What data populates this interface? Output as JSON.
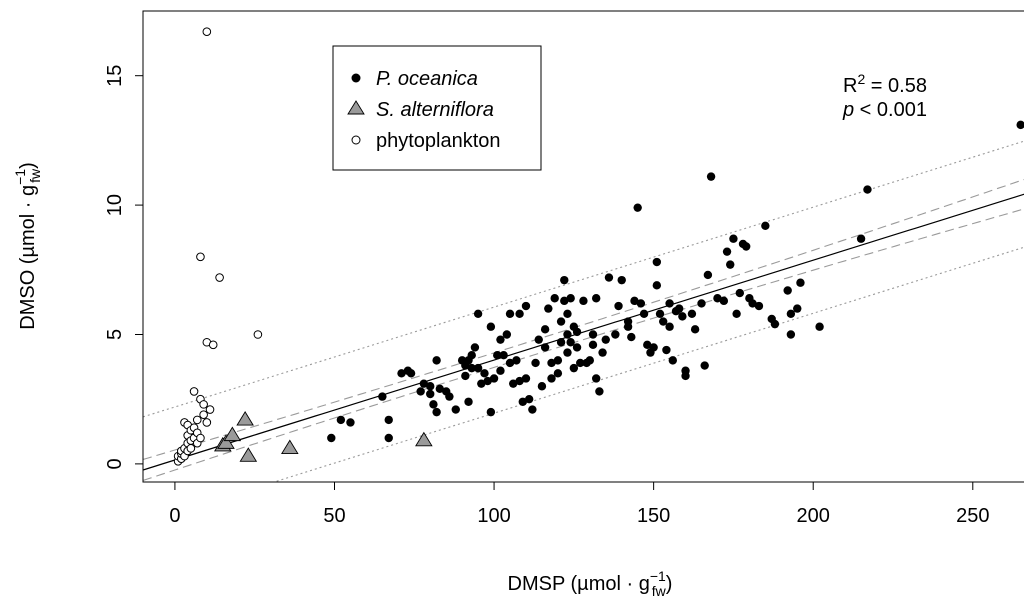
{
  "chart_data": {
    "type": "scatter",
    "xlabel": "DMSP (µmol · g",
    "xlabel_sup": "−1",
    "xlabel_sub": "fw",
    "xlabel_close": ")",
    "ylabel": "DMSO (µmol · g",
    "ylabel_sup": "−1",
    "ylabel_sub": "fw",
    "ylabel_close": ")",
    "xlim": [
      -10,
      272
    ],
    "ylim": [
      -0.7,
      17.5
    ],
    "x_ticks": [
      0,
      50,
      100,
      150,
      200,
      250
    ],
    "y_ticks": [
      0,
      5,
      10,
      15
    ],
    "legend_position": "top-left",
    "annotation": {
      "r2_prefix": "R",
      "r2_sup": "2",
      "r2_value": " = 0.58",
      "p_letter": "p",
      "p_value": " < 0.001"
    },
    "fit": {
      "slope": 0.0386,
      "intercept": 0.15
    },
    "confidence_band": {
      "half_width": 0.28,
      "curvature": 1.05e-05,
      "center_x": 100
    },
    "prediction_band": {
      "half_width": 2.05
    },
    "series": [
      {
        "name": "P. oceanica",
        "marker": "filled-circle",
        "color": "#000000",
        "points": [
          [
            49,
            1.0
          ],
          [
            52,
            1.7
          ],
          [
            55,
            1.6
          ],
          [
            65,
            2.6
          ],
          [
            67,
            1.0
          ],
          [
            67,
            1.7
          ],
          [
            71,
            3.5
          ],
          [
            73,
            3.6
          ],
          [
            74,
            3.5
          ],
          [
            77,
            2.8
          ],
          [
            78,
            3.1
          ],
          [
            80,
            2.7
          ],
          [
            80,
            3.0
          ],
          [
            81,
            2.3
          ],
          [
            82,
            2.0
          ],
          [
            82,
            4.0
          ],
          [
            83,
            2.9
          ],
          [
            85,
            2.8
          ],
          [
            86,
            2.6
          ],
          [
            88,
            2.1
          ],
          [
            90,
            4.0
          ],
          [
            91,
            3.4
          ],
          [
            91,
            3.8
          ],
          [
            92,
            2.4
          ],
          [
            92,
            4.0
          ],
          [
            93,
            4.2
          ],
          [
            93,
            3.7
          ],
          [
            94,
            4.5
          ],
          [
            95,
            3.7
          ],
          [
            95,
            5.8
          ],
          [
            96,
            3.1
          ],
          [
            97,
            3.5
          ],
          [
            98,
            3.2
          ],
          [
            99,
            5.3
          ],
          [
            99,
            2.0
          ],
          [
            100,
            3.3
          ],
          [
            101,
            4.2
          ],
          [
            102,
            4.8
          ],
          [
            102,
            3.6
          ],
          [
            103,
            4.2
          ],
          [
            104,
            5.0
          ],
          [
            105,
            3.9
          ],
          [
            105,
            5.8
          ],
          [
            106,
            3.1
          ],
          [
            107,
            4.0
          ],
          [
            108,
            5.8
          ],
          [
            108,
            3.2
          ],
          [
            109,
            2.4
          ],
          [
            110,
            6.1
          ],
          [
            110,
            3.3
          ],
          [
            111,
            2.5
          ],
          [
            112,
            2.1
          ],
          [
            113,
            3.9
          ],
          [
            114,
            4.8
          ],
          [
            115,
            3.0
          ],
          [
            116,
            5.2
          ],
          [
            116,
            4.5
          ],
          [
            117,
            6.0
          ],
          [
            118,
            3.9
          ],
          [
            118,
            3.3
          ],
          [
            119,
            6.4
          ],
          [
            120,
            4.0
          ],
          [
            120,
            3.5
          ],
          [
            121,
            4.7
          ],
          [
            121,
            5.5
          ],
          [
            122,
            7.1
          ],
          [
            122,
            6.3
          ],
          [
            123,
            5.0
          ],
          [
            123,
            4.3
          ],
          [
            123,
            5.8
          ],
          [
            124,
            6.4
          ],
          [
            124,
            4.7
          ],
          [
            125,
            3.7
          ],
          [
            125,
            5.3
          ],
          [
            126,
            5.1
          ],
          [
            126,
            4.5
          ],
          [
            127,
            3.9
          ],
          [
            128,
            6.3
          ],
          [
            129,
            3.9
          ],
          [
            130,
            4.0
          ],
          [
            131,
            4.6
          ],
          [
            131,
            5.0
          ],
          [
            132,
            6.4
          ],
          [
            132,
            3.3
          ],
          [
            133,
            2.8
          ],
          [
            134,
            4.3
          ],
          [
            135,
            4.8
          ],
          [
            136,
            7.2
          ],
          [
            138,
            5.0
          ],
          [
            139,
            6.1
          ],
          [
            140,
            7.1
          ],
          [
            142,
            5.5
          ],
          [
            142,
            5.3
          ],
          [
            143,
            4.9
          ],
          [
            144,
            6.3
          ],
          [
            145,
            9.9
          ],
          [
            146,
            6.2
          ],
          [
            147,
            5.8
          ],
          [
            148,
            4.6
          ],
          [
            149,
            4.3
          ],
          [
            150,
            4.5
          ],
          [
            151,
            6.9
          ],
          [
            151,
            7.8
          ],
          [
            152,
            5.8
          ],
          [
            153,
            5.5
          ],
          [
            154,
            4.4
          ],
          [
            155,
            5.3
          ],
          [
            155,
            6.2
          ],
          [
            156,
            4.0
          ],
          [
            157,
            5.9
          ],
          [
            158,
            6.0
          ],
          [
            159,
            5.7
          ],
          [
            160,
            3.6
          ],
          [
            160,
            3.4
          ],
          [
            162,
            5.8
          ],
          [
            163,
            5.2
          ],
          [
            165,
            6.2
          ],
          [
            166,
            3.8
          ],
          [
            167,
            7.3
          ],
          [
            168,
            11.1
          ],
          [
            170,
            6.4
          ],
          [
            172,
            6.3
          ],
          [
            173,
            8.2
          ],
          [
            174,
            7.7
          ],
          [
            175,
            8.7
          ],
          [
            176,
            5.8
          ],
          [
            177,
            6.6
          ],
          [
            178,
            8.5
          ],
          [
            179,
            8.4
          ],
          [
            180,
            6.4
          ],
          [
            181,
            6.2
          ],
          [
            183,
            6.1
          ],
          [
            185,
            9.2
          ],
          [
            187,
            5.6
          ],
          [
            188,
            5.4
          ],
          [
            192,
            6.7
          ],
          [
            193,
            5.0
          ],
          [
            193,
            5.8
          ],
          [
            195,
            6.0
          ],
          [
            196,
            7.0
          ],
          [
            202,
            5.3
          ],
          [
            215,
            8.7
          ],
          [
            217,
            10.6
          ],
          [
            265,
            13.1
          ]
        ]
      },
      {
        "name": "S. alterniflora",
        "marker": "triangle",
        "color": "#9a9a9a",
        "points": [
          [
            15,
            0.7
          ],
          [
            16,
            0.8
          ],
          [
            18,
            1.1
          ],
          [
            22,
            1.7
          ],
          [
            23,
            0.3
          ],
          [
            36,
            0.6
          ],
          [
            78,
            0.9
          ]
        ]
      },
      {
        "name": "phytoplankton",
        "marker": "open-circle",
        "color": "#000000",
        "points": [
          [
            1,
            0.1
          ],
          [
            1,
            0.3
          ],
          [
            2,
            0.2
          ],
          [
            2,
            0.4
          ],
          [
            2,
            0.5
          ],
          [
            3,
            0.3
          ],
          [
            3,
            0.6
          ],
          [
            3,
            1.6
          ],
          [
            4,
            0.5
          ],
          [
            4,
            0.8
          ],
          [
            4,
            1.1
          ],
          [
            4,
            1.5
          ],
          [
            5,
            0.9
          ],
          [
            5,
            1.3
          ],
          [
            5,
            0.6
          ],
          [
            6,
            1.0
          ],
          [
            6,
            1.4
          ],
          [
            6,
            2.8
          ],
          [
            7,
            1.2
          ],
          [
            7,
            0.8
          ],
          [
            7,
            1.7
          ],
          [
            8,
            8.0
          ],
          [
            8,
            2.5
          ],
          [
            8,
            1.0
          ],
          [
            9,
            1.9
          ],
          [
            9,
            2.3
          ],
          [
            10,
            4.7
          ],
          [
            10,
            16.7
          ],
          [
            10,
            1.6
          ],
          [
            11,
            2.1
          ],
          [
            12,
            4.6
          ],
          [
            14,
            7.2
          ],
          [
            26,
            5.0
          ]
        ]
      }
    ]
  }
}
